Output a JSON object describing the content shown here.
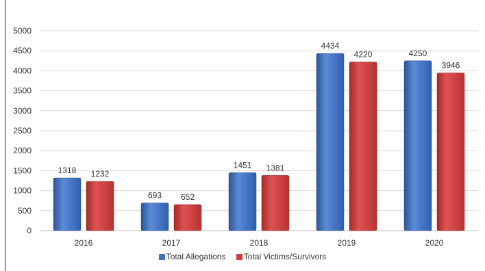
{
  "chart_data": {
    "type": "bar",
    "categories": [
      "2016",
      "2017",
      "2018",
      "2019",
      "2020"
    ],
    "series": [
      {
        "name": "Total Allegations",
        "values": [
          1318,
          693,
          1451,
          4434,
          4250
        ],
        "color": "#4472C4"
      },
      {
        "name": "Total Victims/Survivors",
        "values": [
          1232,
          652,
          1381,
          4220,
          3946
        ],
        "color": "#D13C3C"
      }
    ],
    "ylim": [
      0,
      5000
    ],
    "yticks": [
      0,
      500,
      1000,
      1500,
      2000,
      2500,
      3000,
      3500,
      4000,
      4500,
      5000
    ],
    "grid": true,
    "legend_position": "bottom",
    "title": "",
    "xlabel": "",
    "ylabel": ""
  }
}
